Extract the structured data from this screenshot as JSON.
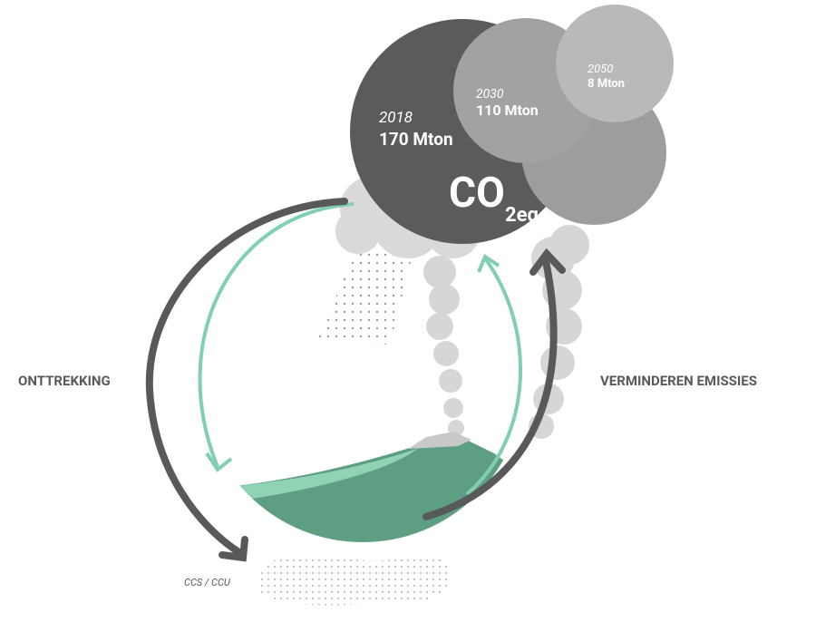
{
  "bubbles": [
    {
      "year": "2018",
      "amount": "170 Mton"
    },
    {
      "year": "2030",
      "amount": "110 Mton"
    },
    {
      "year": "2050",
      "amount": "8 Mton"
    }
  ],
  "center": {
    "main": "CO",
    "sub": "2eq"
  },
  "labels": {
    "left": "ONTTREKKING",
    "right": "VERMINDEREN EMISSIES",
    "bottom": "CCS / CCU"
  }
}
